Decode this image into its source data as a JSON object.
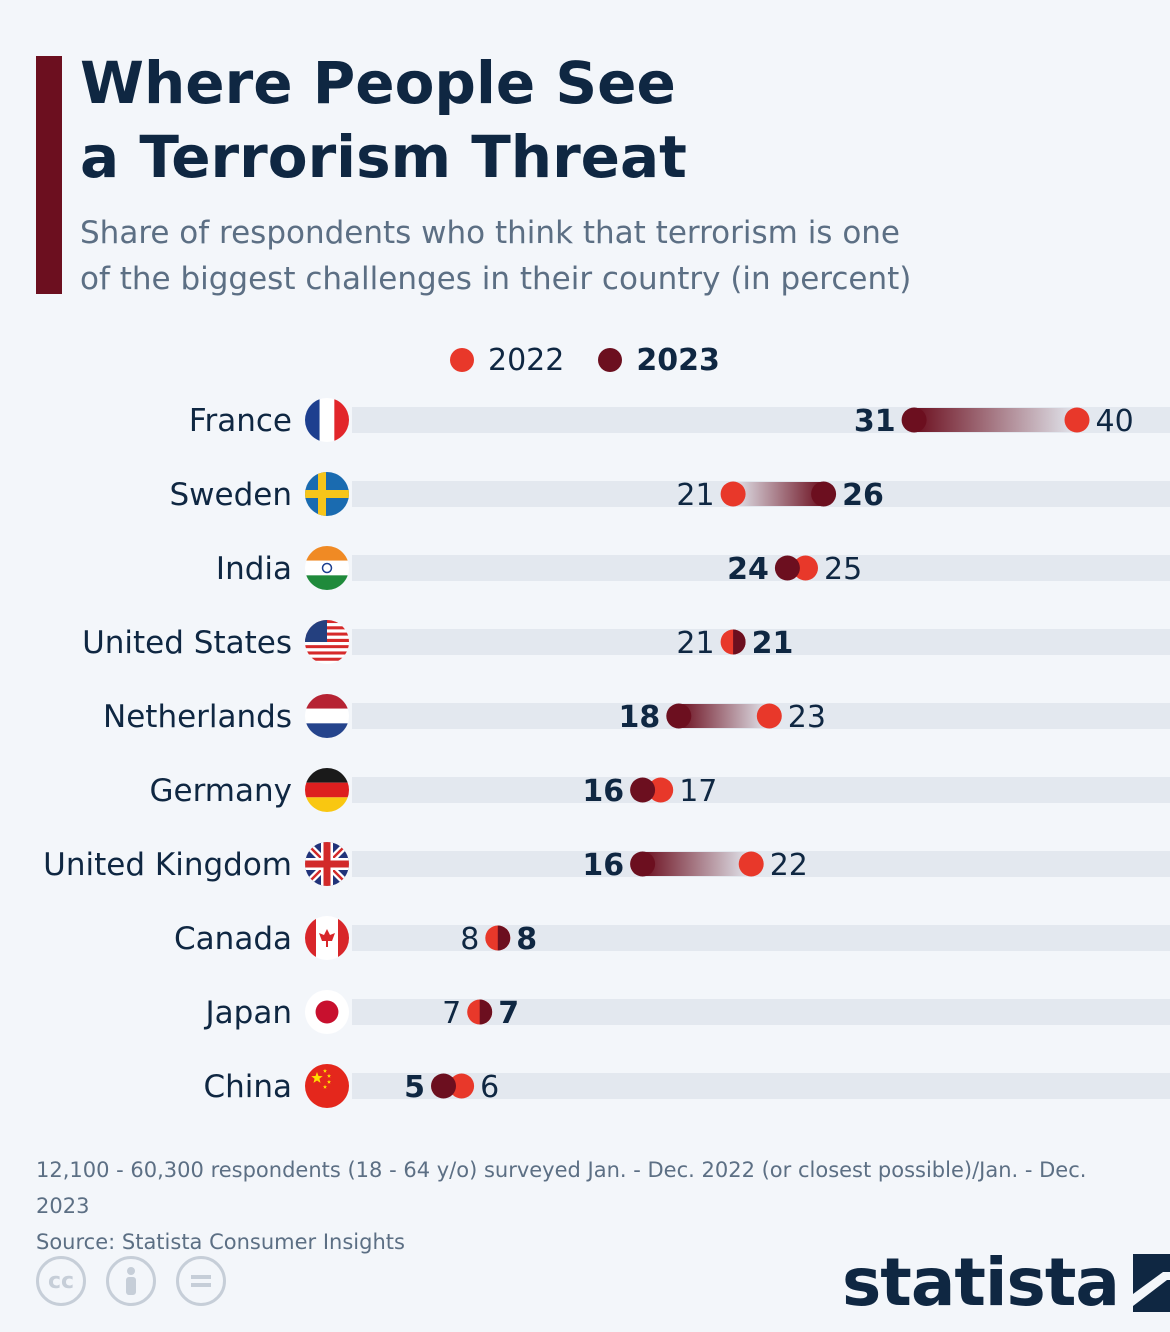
{
  "header": {
    "title_line1": "Where People See",
    "title_line2": "a Terrorism Threat",
    "subtitle_line1": "Share of respondents who think that terrorism is one",
    "subtitle_line2": "of the biggest challenges in their country (in percent)"
  },
  "colors": {
    "accent": "#6c0f1f",
    "color_2022": "#e8382a",
    "color_2023": "#6c0f1f",
    "track": "#e3e8ef",
    "text_dark": "#0f2742",
    "text_muted": "#5c6f84"
  },
  "legend": {
    "label_2022": "2022",
    "label_2023": "2023"
  },
  "chart_data": {
    "type": "dumbbell",
    "title": "Where People See a Terrorism Threat",
    "subtitle": "Share of respondents who think that terrorism is one of the biggest challenges in their country (in percent)",
    "xlim": [
      0,
      45
    ],
    "series": [
      {
        "name": "2022",
        "values": [
          40,
          21,
          25,
          21,
          23,
          17,
          22,
          8,
          7,
          6
        ]
      },
      {
        "name": "2023",
        "values": [
          31,
          26,
          24,
          21,
          18,
          16,
          16,
          8,
          7,
          5
        ]
      }
    ],
    "categories": [
      "France",
      "Sweden",
      "India",
      "United States",
      "Netherlands",
      "Germany",
      "United Kingdom",
      "Canada",
      "Japan",
      "China"
    ],
    "flags": [
      "france-flag-icon",
      "sweden-flag-icon",
      "india-flag-icon",
      "usa-flag-icon",
      "netherlands-flag-icon",
      "germany-flag-icon",
      "uk-flag-icon",
      "canada-flag-icon",
      "japan-flag-icon",
      "china-flag-icon"
    ]
  },
  "footer": {
    "note": "12,100 - 60,300 respondents (18 - 64 y/o) surveyed Jan. - Dec. 2022 (or closest possible)/Jan. - Dec. 2023",
    "source": "Source: Statista Consumer Insights"
  },
  "license_icons": [
    "cc-icon",
    "attribution-icon",
    "no-derivatives-icon"
  ],
  "brand": {
    "name": "statista"
  }
}
